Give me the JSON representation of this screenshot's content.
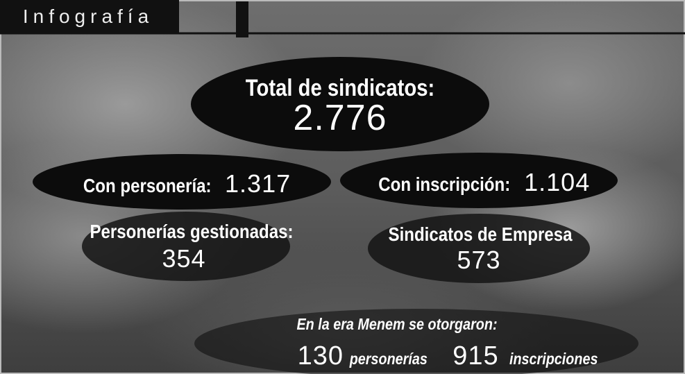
{
  "header": {
    "title": "Infografía"
  },
  "total": {
    "label": "Total de sindicatos:",
    "value": "2.776"
  },
  "stats": [
    {
      "label": "Con personería:",
      "value": "1.317"
    },
    {
      "label": "Con inscripción:",
      "value": "1.104"
    },
    {
      "label": "Personerías gestionadas:",
      "value": "354"
    },
    {
      "label": "Sindicatos de Empresa",
      "value": "573"
    }
  ],
  "menem": {
    "title": "En la era Menem se otorgaron:",
    "items": [
      {
        "value": "130",
        "label": "personerías"
      },
      {
        "value": "915",
        "label": "inscripciones"
      }
    ]
  }
}
